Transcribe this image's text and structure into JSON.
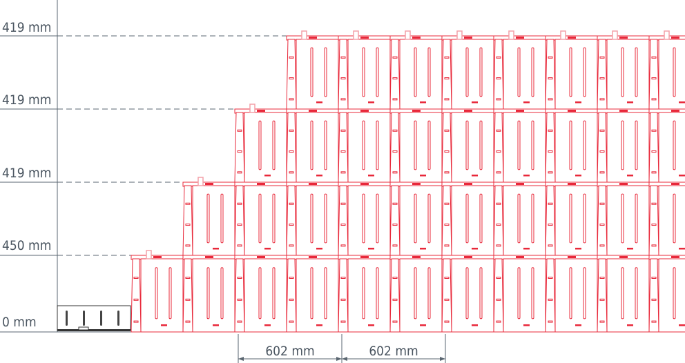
{
  "levels": [
    {
      "label": "419 mm"
    },
    {
      "label": "419 mm"
    },
    {
      "label": "419 mm"
    },
    {
      "label": "450 mm"
    },
    {
      "label": "0 mm"
    }
  ],
  "dimensions": [
    {
      "label": "602 mm"
    },
    {
      "label": "602 mm"
    }
  ],
  "colors": {
    "block_stroke": "#e8283a",
    "clip": "#f4a0a8",
    "axis": "#5a6670",
    "base_plate": "#333333"
  }
}
